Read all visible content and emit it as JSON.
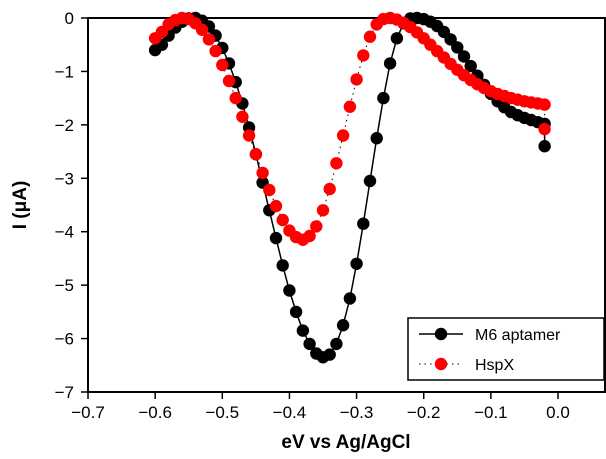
{
  "chart_data": {
    "type": "scatter",
    "xlabel": "eV vs Ag/AgCl",
    "ylabel": "I (μA)",
    "xlim": [
      -0.7,
      0.07
    ],
    "ylim": [
      -7,
      0
    ],
    "x_ticks": [
      "−0.7",
      "−0.6",
      "−0.5",
      "−0.4",
      "−0.3",
      "−0.2",
      "−0.1",
      "0.0"
    ],
    "x_tick_values": [
      -0.7,
      -0.6,
      -0.5,
      -0.4,
      -0.3,
      -0.2,
      -0.1,
      0.0
    ],
    "y_ticks": [
      "0",
      "−1",
      "−2",
      "−3",
      "−4",
      "−5",
      "−6",
      "−7"
    ],
    "y_tick_values": [
      0,
      -1,
      -2,
      -3,
      -4,
      -5,
      -6,
      -7
    ],
    "grid": false,
    "legend_position": "bottom-right",
    "series": [
      {
        "name": "M6 aptamer",
        "color": "#000000",
        "line": "solid",
        "x": [
          -0.6,
          -0.59,
          -0.58,
          -0.57,
          -0.56,
          -0.55,
          -0.54,
          -0.53,
          -0.52,
          -0.51,
          -0.5,
          -0.49,
          -0.48,
          -0.47,
          -0.46,
          -0.45,
          -0.44,
          -0.43,
          -0.42,
          -0.41,
          -0.4,
          -0.39,
          -0.38,
          -0.37,
          -0.36,
          -0.35,
          -0.34,
          -0.33,
          -0.32,
          -0.31,
          -0.3,
          -0.29,
          -0.28,
          -0.27,
          -0.26,
          -0.25,
          -0.24,
          -0.23,
          -0.22,
          -0.21,
          -0.2,
          -0.19,
          -0.18,
          -0.17,
          -0.16,
          -0.15,
          -0.14,
          -0.13,
          -0.12,
          -0.11,
          -0.1,
          -0.09,
          -0.08,
          -0.07,
          -0.06,
          -0.05,
          -0.04,
          -0.03,
          -0.02,
          -0.02
        ],
        "y": [
          -0.6,
          -0.5,
          -0.33,
          -0.18,
          -0.07,
          -0.01,
          0,
          -0.05,
          -0.16,
          -0.33,
          -0.56,
          -0.85,
          -1.2,
          -1.6,
          -2.05,
          -2.55,
          -3.08,
          -3.6,
          -4.12,
          -4.63,
          -5.1,
          -5.5,
          -5.85,
          -6.1,
          -6.28,
          -6.35,
          -6.3,
          -6.1,
          -5.75,
          -5.25,
          -4.6,
          -3.85,
          -3.05,
          -2.25,
          -1.5,
          -0.85,
          -0.38,
          -0.1,
          -0.01,
          0,
          -0.02,
          -0.07,
          -0.15,
          -0.26,
          -0.4,
          -0.55,
          -0.72,
          -0.9,
          -1.08,
          -1.25,
          -1.42,
          -1.56,
          -1.67,
          -1.76,
          -1.82,
          -1.87,
          -1.91,
          -1.95,
          -1.98,
          -2.4
        ]
      },
      {
        "name": "HspX",
        "color": "#ff0000",
        "line": "dotted",
        "x": [
          -0.6,
          -0.59,
          -0.58,
          -0.57,
          -0.56,
          -0.55,
          -0.54,
          -0.53,
          -0.52,
          -0.51,
          -0.5,
          -0.49,
          -0.48,
          -0.47,
          -0.46,
          -0.45,
          -0.44,
          -0.43,
          -0.42,
          -0.41,
          -0.4,
          -0.39,
          -0.38,
          -0.37,
          -0.36,
          -0.35,
          -0.34,
          -0.33,
          -0.32,
          -0.31,
          -0.3,
          -0.29,
          -0.28,
          -0.27,
          -0.26,
          -0.25,
          -0.24,
          -0.23,
          -0.22,
          -0.21,
          -0.2,
          -0.19,
          -0.18,
          -0.17,
          -0.16,
          -0.15,
          -0.14,
          -0.13,
          -0.12,
          -0.11,
          -0.1,
          -0.09,
          -0.08,
          -0.07,
          -0.06,
          -0.05,
          -0.04,
          -0.03,
          -0.02,
          -0.02
        ],
        "y": [
          -0.38,
          -0.26,
          -0.12,
          -0.04,
          0,
          -0.02,
          -0.1,
          -0.22,
          -0.4,
          -0.62,
          -0.88,
          -1.18,
          -1.5,
          -1.85,
          -2.2,
          -2.55,
          -2.9,
          -3.22,
          -3.52,
          -3.78,
          -3.98,
          -4.1,
          -4.15,
          -4.08,
          -3.9,
          -3.6,
          -3.2,
          -2.72,
          -2.2,
          -1.66,
          -1.15,
          -0.7,
          -0.35,
          -0.12,
          -0.02,
          0,
          -0.03,
          -0.09,
          -0.17,
          -0.27,
          -0.38,
          -0.5,
          -0.62,
          -0.74,
          -0.86,
          -0.97,
          -1.07,
          -1.16,
          -1.24,
          -1.31,
          -1.37,
          -1.42,
          -1.46,
          -1.5,
          -1.53,
          -1.56,
          -1.58,
          -1.6,
          -1.62,
          -2.08
        ]
      }
    ]
  }
}
